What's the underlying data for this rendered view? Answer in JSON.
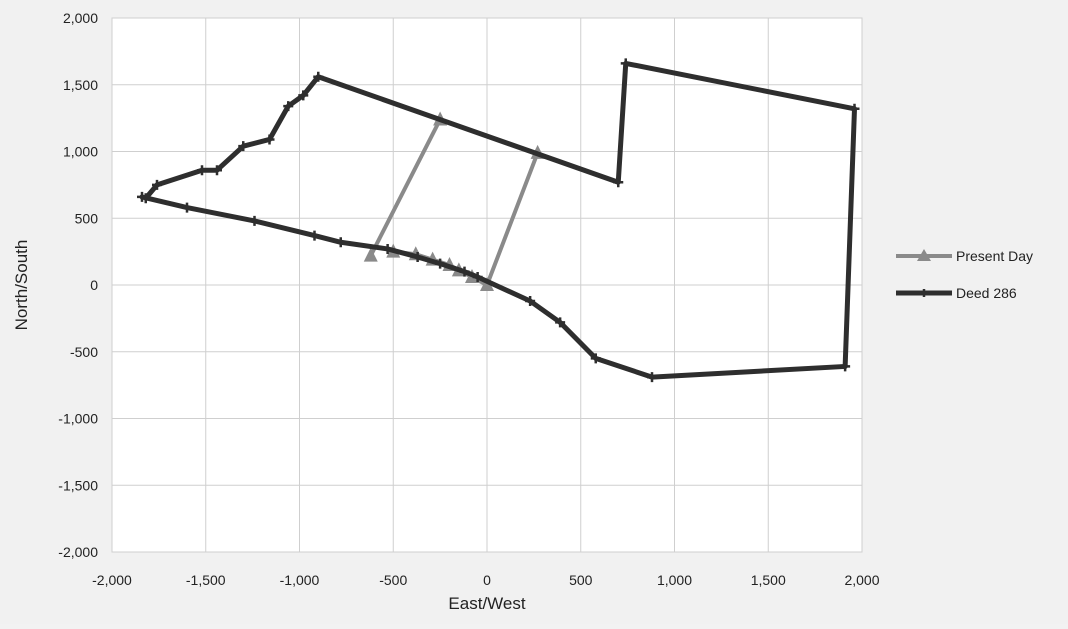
{
  "chart_data": {
    "type": "scatter",
    "title": "",
    "xlabel": "East/West",
    "ylabel": "North/South",
    "xlim": [
      -2000,
      2000
    ],
    "ylim": [
      -2000,
      2000
    ],
    "xticks": [
      -2000,
      -1500,
      -1000,
      -500,
      0,
      500,
      1000,
      1500,
      2000
    ],
    "yticks": [
      -2000,
      -1500,
      -1000,
      -500,
      0,
      500,
      1000,
      1500,
      2000
    ],
    "xtick_labels": [
      "-2,000",
      "-1,500",
      "-1,000",
      "-500",
      "0",
      "500",
      "1,000",
      "1,500",
      "2,000"
    ],
    "ytick_labels": [
      "-2,000",
      "-1,500",
      "-1,000",
      "-500",
      "0",
      "500",
      "1,000",
      "1,500",
      "2,000"
    ],
    "grid": true,
    "legend_position": "right",
    "series": [
      {
        "name": "Present Day",
        "color": "#8a8a8a",
        "marker": "triangle",
        "line_width": 4,
        "x": [
          -620,
          -250,
          null,
          -500,
          -380,
          -290,
          -200,
          -150,
          -80,
          0,
          270
        ],
        "y": [
          220,
          1240,
          null,
          250,
          230,
          190,
          150,
          110,
          60,
          0,
          990
        ]
      },
      {
        "name": "Deed 286",
        "color": "#2e2e2e",
        "marker": "plus",
        "line_width": 5,
        "x": [
          -1820,
          -1760,
          -1520,
          -1440,
          -1300,
          -1160,
          -1060,
          -980,
          -900,
          700,
          740,
          1960,
          1910,
          880,
          580,
          390,
          230,
          -50,
          -120,
          -250,
          -370,
          -530,
          -780,
          -920,
          -1240,
          -1600,
          -1840
        ],
        "y": [
          650,
          750,
          860,
          860,
          1040,
          1090,
          1340,
          1420,
          1560,
          770,
          1660,
          1320,
          -610,
          -690,
          -550,
          -280,
          -120,
          60,
          100,
          160,
          210,
          270,
          320,
          370,
          480,
          580,
          660
        ]
      }
    ]
  }
}
